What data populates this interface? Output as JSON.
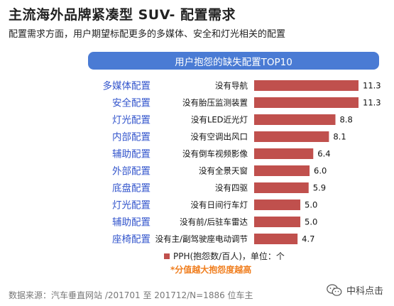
{
  "title": "主流海外品牌紧凑型 SUV- 配置需求",
  "subtitle": "配置需求方面，用户期望标配更多的多媒体、安全和灯光相关的配置",
  "chart_data": {
    "type": "bar",
    "title": "用户抱怨的缺失配置TOP10",
    "categories": [
      "多媒体配置",
      "安全配置",
      "灯光配置",
      "内部配置",
      "辅助配置",
      "外部配置",
      "底盘配置",
      "灯光配置",
      "辅助配置",
      "座椅配置"
    ],
    "labels": [
      "没有导航",
      "没有胎压监测装置",
      "没有LED近光灯",
      "没有空调出风口",
      "没有倒车视频影像",
      "没有全景天窗",
      "没有四驱",
      "没有日间行车灯",
      "没有前/后驻车雷达",
      "没有主/副驾驶座电动调节"
    ],
    "values": [
      11.3,
      11.3,
      8.8,
      8.1,
      6.4,
      6.0,
      5.9,
      5.0,
      5.0,
      4.7
    ],
    "series": [
      {
        "name": "PPH(抱怨数/百人)，单位：个",
        "values": [
          11.3,
          11.3,
          8.8,
          8.1,
          6.4,
          6.0,
          5.9,
          5.0,
          5.0,
          4.7
        ]
      }
    ],
    "orientation": "horizontal",
    "bar_color": "#c0504d",
    "category_color": "#3355cc",
    "legend_position": "bottom",
    "grid": false
  },
  "legend_label": "PPH(抱怨数/百人)，单位：个",
  "note": "*分值越大抱怨度越高",
  "source": "数据来源：汽车垂直网站 /201701 至 201712/N=1886 位车主",
  "watermark": "中科点击",
  "icon": "wechat-icon"
}
